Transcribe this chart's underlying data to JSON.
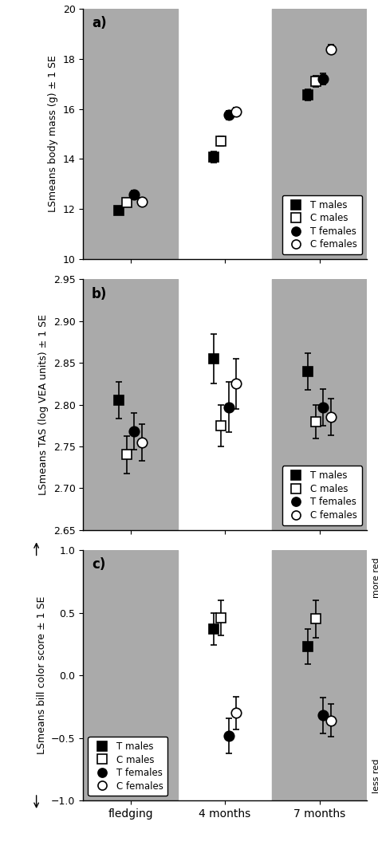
{
  "background_color": "#ffffff",
  "gray_color": "#aaaaaa",
  "x_positions": [
    1,
    2,
    3
  ],
  "x_labels": [
    "fledging",
    "4 months",
    "7 months"
  ],
  "gray_bands": [
    {
      "xmin": 0.5,
      "xmax": 1.5
    },
    {
      "xmin": 2.5,
      "xmax": 3.5
    }
  ],
  "panel_a": {
    "label": "a)",
    "ylabel": "LSmeans body mass (g) ± 1 SE",
    "ylim": [
      10.0,
      20.0
    ],
    "yticks": [
      10.0,
      12.0,
      14.0,
      16.0,
      18.0,
      20.0
    ],
    "T_males": {
      "x": [
        1,
        2,
        3
      ],
      "y": [
        11.95,
        14.08,
        16.55
      ],
      "yerr": [
        0.15,
        0.22,
        0.22
      ]
    },
    "C_males": {
      "x": [
        1,
        2,
        3
      ],
      "y": [
        12.25,
        14.72,
        17.1
      ],
      "yerr": [
        0.15,
        0.2,
        0.22
      ]
    },
    "T_females": {
      "x": [
        1,
        2,
        3
      ],
      "y": [
        12.58,
        15.75,
        17.2
      ],
      "yerr": [
        0.15,
        0.18,
        0.22
      ]
    },
    "C_females": {
      "x": [
        1,
        2,
        3
      ],
      "y": [
        12.3,
        15.9,
        18.38
      ],
      "yerr": [
        0.15,
        0.15,
        0.18
      ]
    }
  },
  "panel_b": {
    "label": "b)",
    "ylabel": "LSmeans TAS (log VEA units) ± 1 SE",
    "ylim": [
      2.65,
      2.95
    ],
    "yticks": [
      2.65,
      2.7,
      2.75,
      2.8,
      2.85,
      2.9,
      2.95
    ],
    "T_males": {
      "x": [
        1,
        2,
        3
      ],
      "y": [
        2.805,
        2.855,
        2.84
      ],
      "yerr": [
        0.022,
        0.03,
        0.022
      ]
    },
    "C_males": {
      "x": [
        1,
        2,
        3
      ],
      "y": [
        2.74,
        2.775,
        2.78
      ],
      "yerr": [
        0.022,
        0.025,
        0.02
      ]
    },
    "T_females": {
      "x": [
        1,
        2,
        3
      ],
      "y": [
        2.768,
        2.797,
        2.797
      ],
      "yerr": [
        0.022,
        0.03,
        0.022
      ]
    },
    "C_females": {
      "x": [
        1,
        2,
        3
      ],
      "y": [
        2.755,
        2.825,
        2.785
      ],
      "yerr": [
        0.022,
        0.03,
        0.022
      ]
    }
  },
  "panel_c": {
    "label": "c)",
    "ylabel": "LSmeans bill color score ± 1 SE",
    "ylim": [
      -1.0,
      1.0
    ],
    "yticks": [
      -1.0,
      -0.5,
      0.0,
      0.5,
      1.0
    ],
    "more_red_label": "more red",
    "less_red_label": "less red",
    "T_males": {
      "x": [
        2,
        3
      ],
      "y": [
        0.37,
        0.23
      ],
      "yerr": [
        0.13,
        0.14
      ]
    },
    "C_males": {
      "x": [
        2,
        3
      ],
      "y": [
        0.46,
        0.45
      ],
      "yerr": [
        0.14,
        0.15
      ]
    },
    "T_females": {
      "x": [
        2,
        3
      ],
      "y": [
        -0.48,
        -0.32
      ],
      "yerr": [
        0.14,
        0.14
      ]
    },
    "C_females": {
      "x": [
        2,
        3
      ],
      "y": [
        -0.3,
        -0.36
      ],
      "yerr": [
        0.13,
        0.13
      ]
    }
  },
  "legend_entries": [
    "T males",
    "C males",
    "T females",
    "C females"
  ],
  "marker_size": 9,
  "capsize": 3,
  "elinewidth": 1.2,
  "capthick": 1.2
}
